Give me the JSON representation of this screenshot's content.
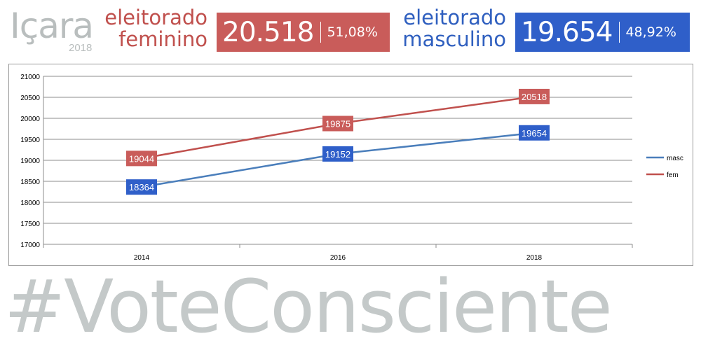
{
  "header": {
    "city": "Içara",
    "year": "2018",
    "female": {
      "label_line1": "eleitorado",
      "label_line2": "feminino",
      "total": "20.518",
      "percent": "51,08%"
    },
    "male": {
      "label_line1": "eleitorado",
      "label_line2": "masculino",
      "total": "19.654",
      "percent": "48,92%"
    }
  },
  "colors": {
    "female": "#c0504d",
    "female_box": "#c95c5a",
    "male": "#4a7ebb",
    "male_box": "#2f5fc9",
    "muted": "#b9bebe"
  },
  "chart_data": {
    "type": "line",
    "categories": [
      "2014",
      "2016",
      "2018"
    ],
    "series": [
      {
        "name": "masc",
        "values": [
          18364,
          19152,
          19654
        ],
        "color": "#4a7ebb",
        "label_bg": "#2f5fc9"
      },
      {
        "name": "fem",
        "values": [
          19044,
          19875,
          20518
        ],
        "color": "#c0504d",
        "label_bg": "#c95c5a"
      }
    ],
    "ylim": [
      17000,
      21000
    ],
    "yticks": [
      17000,
      17500,
      18000,
      18500,
      19000,
      19500,
      20000,
      20500,
      21000
    ],
    "grid": true,
    "legend": "right",
    "data_labels": true
  },
  "footer": {
    "hashtag": "#VoteConsciente"
  }
}
